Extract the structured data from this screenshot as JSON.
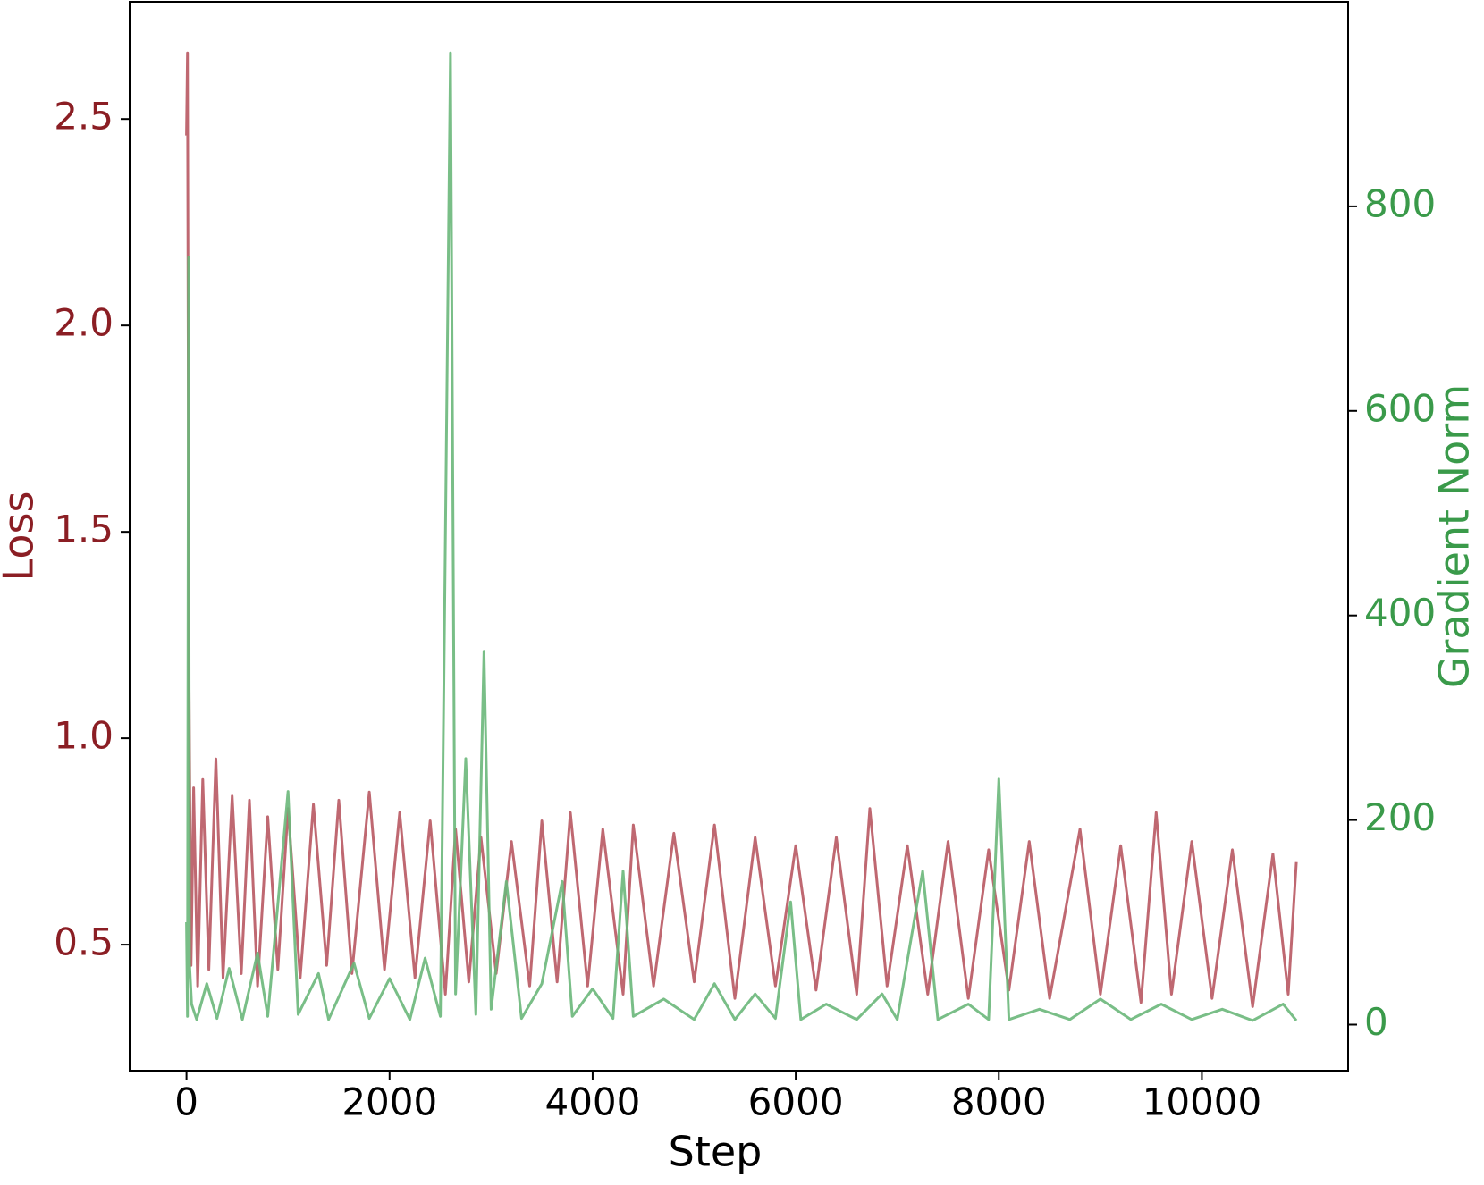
{
  "chart_data": {
    "type": "line",
    "x_label": "Step",
    "y_label": "Loss",
    "y2_label": "Gradient Norm",
    "xlim": [
      -560,
      11440
    ],
    "xticks": [
      0,
      2000,
      4000,
      6000,
      8000,
      10000
    ],
    "ylim": [
      0.195,
      2.784
    ],
    "yticks": [
      0.5,
      {
        "value": 1,
        "label": "1.0"
      },
      1.5,
      {
        "value": 2,
        "label": "2.0"
      },
      2.5
    ],
    "y2lim": [
      -45,
      1000
    ],
    "y2ticks": [
      0,
      200,
      400,
      600,
      800
    ],
    "y_color": "#8b1e24",
    "y2_color": "#3a9a4a",
    "series": [
      {
        "name": "Loss",
        "color": "#b85862",
        "x": [
          0,
          10,
          25,
          45,
          70,
          110,
          160,
          220,
          290,
          360,
          450,
          540,
          620,
          700,
          800,
          900,
          1000,
          1120,
          1250,
          1380,
          1500,
          1630,
          1800,
          1950,
          2100,
          2250,
          2400,
          2550,
          2650,
          2780,
          2900,
          3050,
          3200,
          3380,
          3500,
          3650,
          3780,
          3950,
          4100,
          4300,
          4400,
          4600,
          4800,
          5000,
          5200,
          5400,
          5600,
          5800,
          6000,
          6200,
          6400,
          6600,
          6730,
          6900,
          7100,
          7300,
          7500,
          7700,
          7900,
          8100,
          8300,
          8500,
          8800,
          9000,
          9200,
          9400,
          9550,
          9700,
          9900,
          10100,
          10300,
          10500,
          10700,
          10850,
          10930
        ],
        "values": [
          2.46,
          2.66,
          1.15,
          0.45,
          0.88,
          0.4,
          0.9,
          0.44,
          0.95,
          0.42,
          0.86,
          0.43,
          0.85,
          0.4,
          0.81,
          0.44,
          0.83,
          0.42,
          0.84,
          0.45,
          0.85,
          0.43,
          0.87,
          0.44,
          0.82,
          0.42,
          0.8,
          0.38,
          0.78,
          0.41,
          0.76,
          0.43,
          0.75,
          0.4,
          0.8,
          0.41,
          0.82,
          0.4,
          0.78,
          0.38,
          0.79,
          0.4,
          0.77,
          0.41,
          0.79,
          0.37,
          0.76,
          0.4,
          0.74,
          0.39,
          0.76,
          0.38,
          0.83,
          0.4,
          0.74,
          0.38,
          0.75,
          0.37,
          0.73,
          0.39,
          0.75,
          0.37,
          0.78,
          0.38,
          0.74,
          0.36,
          0.82,
          0.38,
          0.75,
          0.37,
          0.73,
          0.35,
          0.72,
          0.38,
          0.7
        ]
      },
      {
        "name": "Gradient Norm",
        "color": "#6ab77a",
        "axis": "y2",
        "x": [
          0,
          10,
          20,
          30,
          50,
          100,
          200,
          300,
          420,
          550,
          700,
          800,
          1000,
          1100,
          1300,
          1400,
          1650,
          1800,
          2000,
          2200,
          2350,
          2500,
          2600,
          2650,
          2750,
          2850,
          2930,
          3000,
          3150,
          3300,
          3500,
          3700,
          3800,
          4000,
          4200,
          4300,
          4400,
          4700,
          5000,
          5200,
          5400,
          5600,
          5800,
          5950,
          6050,
          6300,
          6600,
          6850,
          7000,
          7250,
          7400,
          7700,
          7900,
          8000,
          8100,
          8400,
          8700,
          9000,
          9300,
          9600,
          9900,
          10200,
          10500,
          10800,
          10930
        ],
        "values": [
          100,
          8,
          750,
          60,
          20,
          5,
          40,
          6,
          55,
          5,
          70,
          8,
          228,
          10,
          50,
          5,
          60,
          6,
          45,
          5,
          65,
          8,
          950,
          30,
          260,
          10,
          365,
          15,
          140,
          6,
          40,
          140,
          8,
          35,
          6,
          150,
          8,
          25,
          5,
          40,
          5,
          30,
          6,
          120,
          5,
          20,
          5,
          30,
          5,
          150,
          5,
          20,
          5,
          240,
          5,
          15,
          5,
          25,
          5,
          20,
          5,
          15,
          4,
          20,
          4
        ]
      }
    ]
  }
}
